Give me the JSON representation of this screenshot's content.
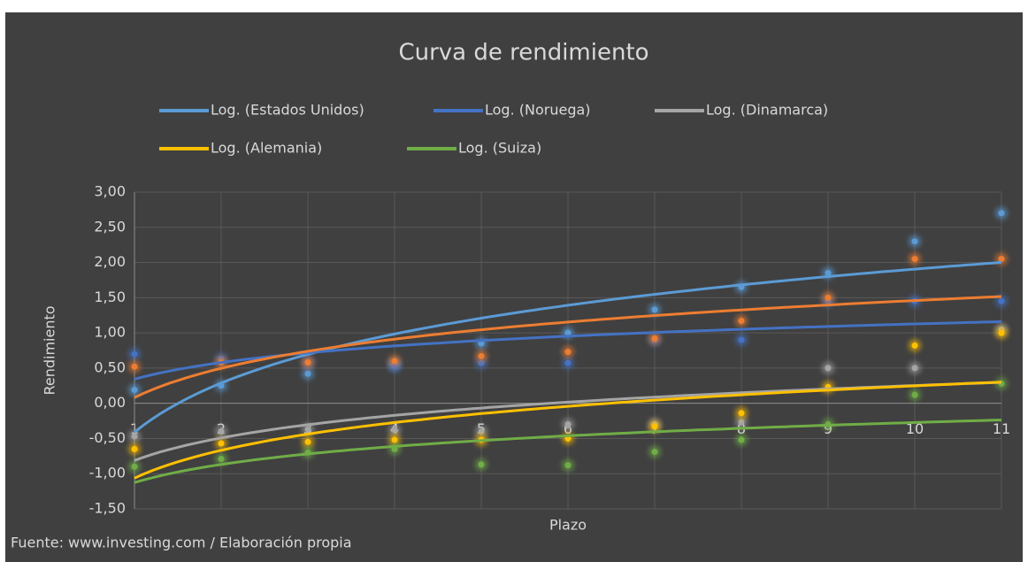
{
  "chart_data": {
    "type": "scatter",
    "title": "Curva de rendimiento",
    "x_label": "Plazo",
    "y_label": "Rendimiento",
    "source": "Fuente: www.investing.com / Elaboración propia",
    "x": [
      1,
      2,
      3,
      4,
      5,
      6,
      7,
      8,
      9,
      10,
      11
    ],
    "xlim": [
      1,
      11
    ],
    "xticks": [
      1,
      2,
      3,
      4,
      5,
      6,
      7,
      8,
      9,
      10,
      11
    ],
    "ylim": [
      -1.5,
      3
    ],
    "yticks": [
      {
        "value": -1.5,
        "label": "-1,50"
      },
      {
        "value": -1,
        "label": "-1,00"
      },
      {
        "value": -0.5,
        "label": "-0,50"
      },
      {
        "value": 0,
        "label": "0,00"
      },
      {
        "value": 0.5,
        "label": "0,50"
      },
      {
        "value": 1,
        "label": "1,00"
      },
      {
        "value": 1.5,
        "label": "1,50"
      },
      {
        "value": 2,
        "label": "2,00"
      },
      {
        "value": 2.5,
        "label": "2,50"
      },
      {
        "value": 3,
        "label": "3,00"
      }
    ],
    "grid": true,
    "legend": "top",
    "series": [
      {
        "trendline": "Log. (Estados Unidos)",
        "color": "#5b9bd5",
        "values": [
          0.19,
          0.25,
          0.42,
          0.55,
          0.85,
          1.0,
          1.33,
          1.65,
          1.85,
          2.3,
          2.7
        ]
      },
      {
        "trendline": "Log. (Noruega)",
        "color": "#4472c4",
        "values": [
          0.7,
          0.63,
          0.58,
          0.53,
          0.57,
          0.57,
          0.9,
          0.9,
          1.45,
          1.45,
          1.45
        ]
      },
      {
        "trendline_shown": true,
        "color": "#ed7d31",
        "values": [
          0.52,
          0.58,
          0.58,
          0.6,
          0.67,
          0.73,
          0.92,
          1.17,
          1.5,
          2.05,
          2.05
        ]
      },
      {
        "trendline": "Log. (Dinamarca)",
        "color": "#a5a5a5",
        "values": [
          -0.47,
          -0.4,
          -0.37,
          -0.38,
          -0.4,
          -0.3,
          -0.3,
          -0.27,
          0.5,
          0.5,
          1.05
        ]
      },
      {
        "trendline": "Log. (Alemania)",
        "color": "#ffc000",
        "values": [
          -0.65,
          -0.57,
          -0.55,
          -0.52,
          -0.52,
          -0.5,
          -0.33,
          -0.14,
          0.23,
          0.82,
          1.0
        ]
      },
      {
        "trendline": "Log. (Suiza)",
        "color": "#70ad47",
        "values": [
          -0.9,
          -0.79,
          -0.7,
          -0.65,
          -0.87,
          -0.88,
          -0.69,
          -0.52,
          -0.3,
          0.12,
          0.28
        ]
      }
    ]
  }
}
